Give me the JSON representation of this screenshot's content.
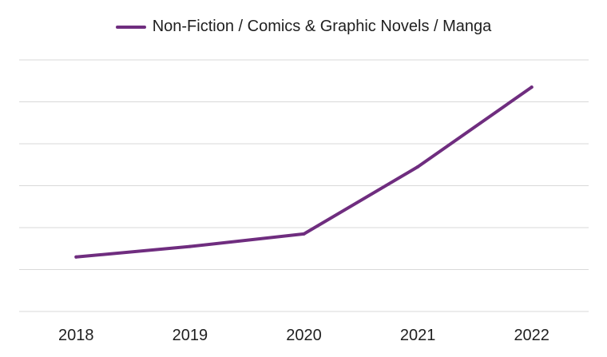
{
  "chart_data": {
    "type": "line",
    "title": "",
    "xlabel": "",
    "ylabel": "",
    "categories": [
      "2018",
      "2019",
      "2020",
      "2021",
      "2022"
    ],
    "series": [
      {
        "name": "Non-Fiction / Comics & Graphic Novels / Manga",
        "values": [
          1.3,
          1.55,
          1.85,
          3.45,
          5.35
        ],
        "color": "#6f2d7f"
      }
    ],
    "ylim": [
      0,
      6
    ],
    "grid": true,
    "legend": "top-center",
    "y_tick_labels_shown": false
  }
}
